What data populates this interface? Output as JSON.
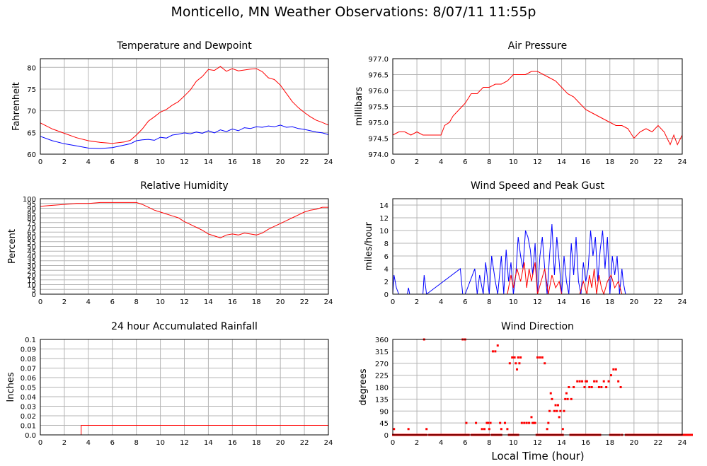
{
  "title": "Monticello, MN Weather Observations: 8/07/11 11:55p",
  "xlabel": "Local Time (hour)",
  "colors": {
    "red": "#ff0000",
    "blue": "#0000ff",
    "grid": "#b4b4b4",
    "frame": "#000000"
  },
  "chart_data": [
    {
      "id": "temp",
      "type": "line",
      "title": "Temperature and Dewpoint",
      "ylabel": "Fahrenheit",
      "xlim": [
        0,
        24
      ],
      "ylim": [
        60,
        82
      ],
      "yticks": [
        60,
        65,
        70,
        75,
        80
      ],
      "yticklabels": [
        "60",
        "65",
        "70",
        "75",
        "80"
      ],
      "xticks": [
        0,
        2,
        4,
        6,
        8,
        10,
        12,
        14,
        16,
        18,
        20,
        22,
        24
      ],
      "series": [
        {
          "color": "#ff0000",
          "x": [
            0,
            1,
            2,
            3,
            4,
            5,
            6,
            7,
            7.5,
            8,
            8.5,
            9,
            9.5,
            10,
            10.5,
            11,
            11.5,
            12,
            12.5,
            13,
            13.5,
            14,
            14.5,
            15,
            15.5,
            16,
            16.5,
            17,
            17.5,
            18,
            18.5,
            19,
            19.5,
            20,
            20.5,
            21,
            21.5,
            22,
            22.5,
            23,
            23.5,
            24
          ],
          "y": [
            67.2,
            65.8,
            64.8,
            63.8,
            63.1,
            62.7,
            62.5,
            62.8,
            63.2,
            64.4,
            65.8,
            67.6,
            68.6,
            69.7,
            70.3,
            71.3,
            72.1,
            73.4,
            74.8,
            76.8,
            77.9,
            79.5,
            79.3,
            80.2,
            79.1,
            79.7,
            79.2,
            79.4,
            79.6,
            79.7,
            79.0,
            77.6,
            77.2,
            75.9,
            74.0,
            72.1,
            70.7,
            69.6,
            68.6,
            67.8,
            67.3,
            66.7
          ]
        },
        {
          "color": "#0000ff",
          "x": [
            0,
            1,
            2,
            3,
            4,
            5,
            6,
            7,
            7.5,
            8,
            8.5,
            9,
            9.5,
            10,
            10.5,
            11,
            11.5,
            12,
            12.5,
            13,
            13.5,
            14,
            14.5,
            15,
            15.5,
            16,
            16.5,
            17,
            17.5,
            18,
            18.5,
            19,
            19.5,
            20,
            20.5,
            21,
            21.5,
            22,
            22.5,
            23,
            23.5,
            24
          ],
          "y": [
            64.1,
            63.1,
            62.4,
            61.9,
            61.4,
            61.3,
            61.5,
            62.1,
            62.4,
            63.1,
            63.3,
            63.4,
            63.2,
            63.9,
            63.7,
            64.4,
            64.6,
            64.9,
            64.7,
            65.1,
            64.8,
            65.4,
            64.9,
            65.6,
            65.2,
            65.8,
            65.4,
            66.1,
            65.9,
            66.3,
            66.2,
            66.5,
            66.3,
            66.7,
            66.2,
            66.3,
            65.9,
            65.7,
            65.4,
            65.1,
            64.9,
            64.5
          ]
        }
      ]
    },
    {
      "id": "pressure",
      "type": "line",
      "title": "Air Pressure",
      "ylabel": "millibars",
      "xlim": [
        0,
        24
      ],
      "ylim": [
        974.0,
        977.0
      ],
      "yticks": [
        974.0,
        974.5,
        975.0,
        975.5,
        976.0,
        976.5,
        977.0
      ],
      "yticklabels": [
        "974.0",
        "974.5",
        "975.0",
        "975.5",
        "976.0",
        "976.5",
        "977.0"
      ],
      "xticks": [
        0,
        2,
        4,
        6,
        8,
        10,
        12,
        14,
        16,
        18,
        20,
        22,
        24
      ],
      "series": [
        {
          "color": "#ff0000",
          "x": [
            0,
            0.5,
            1,
            1.5,
            2,
            2.5,
            3,
            3.5,
            4,
            4.3,
            4.7,
            5,
            5.5,
            6,
            6.5,
            7,
            7.5,
            8,
            8.5,
            9,
            9.5,
            10,
            10.5,
            11,
            11.5,
            12,
            12.5,
            13,
            13.5,
            14,
            14.5,
            15,
            15.5,
            16,
            16.5,
            17,
            17.5,
            18,
            18.5,
            19,
            19.5,
            20,
            20.5,
            21,
            21.5,
            22,
            22.5,
            23,
            23.3,
            23.6,
            24
          ],
          "y": [
            974.6,
            974.7,
            974.7,
            974.6,
            974.7,
            974.6,
            974.6,
            974.6,
            974.6,
            974.9,
            975.0,
            975.2,
            975.4,
            975.6,
            975.9,
            975.9,
            976.1,
            976.1,
            976.2,
            976.2,
            976.3,
            976.5,
            976.5,
            976.5,
            976.6,
            976.6,
            976.5,
            976.4,
            976.3,
            976.1,
            975.9,
            975.8,
            975.6,
            975.4,
            975.3,
            975.2,
            975.1,
            975.0,
            974.9,
            974.9,
            974.8,
            974.5,
            974.7,
            974.8,
            974.7,
            974.9,
            974.7,
            974.3,
            974.6,
            974.3,
            974.6
          ]
        }
      ]
    },
    {
      "id": "humidity",
      "type": "line",
      "title": "Relative Humidity",
      "ylabel": "Percent",
      "xlim": [
        0,
        24
      ],
      "ylim": [
        0,
        100
      ],
      "yticks": [
        0,
        5,
        10,
        15,
        20,
        25,
        30,
        35,
        40,
        45,
        50,
        55,
        60,
        65,
        70,
        75,
        80,
        85,
        90,
        95,
        100
      ],
      "yticklabels": [
        "0",
        "5",
        "10",
        "15",
        "20",
        "25",
        "30",
        "35",
        "40",
        "45",
        "50",
        "55",
        "60",
        "65",
        "70",
        "75",
        "80",
        "85",
        "90",
        "95",
        "100"
      ],
      "xticks": [
        0,
        2,
        4,
        6,
        8,
        10,
        12,
        14,
        16,
        18,
        20,
        22,
        24
      ],
      "series": [
        {
          "color": "#ff0000",
          "x": [
            0,
            1,
            2,
            3,
            4,
            5,
            6,
            7,
            8,
            8.5,
            9,
            9.5,
            10,
            10.5,
            11,
            11.5,
            12,
            12.5,
            13,
            13.5,
            14,
            14.5,
            15,
            15.5,
            16,
            16.5,
            17,
            17.5,
            18,
            18.5,
            19,
            19.5,
            20,
            20.5,
            21,
            21.5,
            22,
            22.5,
            23,
            23.5,
            24
          ],
          "y": [
            92,
            93,
            94,
            95,
            95,
            96,
            96,
            96,
            96,
            94,
            91,
            88,
            86,
            84,
            82,
            80,
            76,
            73,
            70,
            67,
            63,
            61,
            59,
            62,
            63,
            62,
            64,
            63,
            62,
            64,
            68,
            71,
            74,
            77,
            80,
            83,
            86,
            88,
            89,
            91,
            91
          ]
        }
      ]
    },
    {
      "id": "wind",
      "type": "line",
      "title": "Wind Speed and Peak Gust",
      "ylabel": "miles/hour",
      "xlim": [
        0,
        24
      ],
      "ylim": [
        0,
        15
      ],
      "yticks": [
        0,
        2,
        4,
        6,
        8,
        10,
        12,
        14
      ],
      "yticklabels": [
        "0",
        "2",
        "4",
        "6",
        "8",
        "10",
        "12",
        "14"
      ],
      "xticks": [
        0,
        2,
        4,
        6,
        8,
        10,
        12,
        14,
        16,
        18,
        20,
        22,
        24
      ],
      "series": [
        {
          "color": "#0000ff",
          "x": [
            0,
            0.1,
            0.3,
            0.5,
            1.2,
            1.3,
            1.4,
            2.5,
            2.6,
            2.8,
            5.6,
            5.8,
            6.0,
            6.8,
            7.0,
            7.2,
            7.5,
            7.7,
            8.0,
            8.2,
            8.5,
            8.7,
            9.0,
            9.2,
            9.4,
            9.6,
            9.8,
            10.0,
            10.2,
            10.4,
            10.6,
            10.8,
            11.0,
            11.2,
            11.4,
            11.6,
            11.8,
            12.0,
            12.2,
            12.4,
            12.6,
            12.8,
            13.0,
            13.2,
            13.4,
            13.6,
            13.8,
            14.0,
            14.2,
            14.4,
            14.6,
            14.8,
            15.0,
            15.2,
            15.4,
            15.6,
            15.8,
            16.0,
            16.2,
            16.4,
            16.6,
            16.8,
            17.0,
            17.2,
            17.4,
            17.6,
            17.8,
            18.0,
            18.2,
            18.4,
            18.6,
            18.8,
            19.0,
            19.1,
            19.3,
            24
          ],
          "y": [
            0,
            3,
            1,
            0,
            0,
            1,
            0,
            0,
            3,
            0,
            4,
            0,
            0,
            4,
            0,
            3,
            0,
            5,
            0,
            6,
            2,
            0,
            6,
            0,
            7,
            2,
            5,
            0,
            3,
            9,
            6,
            4,
            10,
            9,
            7,
            3,
            8,
            0,
            6,
            9,
            4,
            0,
            6,
            11,
            3,
            9,
            5,
            0,
            6,
            2,
            0,
            8,
            3,
            9,
            2,
            0,
            5,
            2,
            4,
            10,
            6,
            9,
            2,
            7,
            10,
            4,
            9,
            0,
            6,
            3,
            6,
            0,
            4,
            2,
            0,
            0
          ]
        },
        {
          "color": "#ff0000",
          "x": [
            0,
            9.5,
            9.8,
            10.0,
            10.3,
            10.6,
            10.9,
            11.1,
            11.3,
            11.5,
            11.8,
            12.0,
            12.3,
            12.6,
            12.9,
            13.2,
            13.5,
            13.8,
            14.0,
            15.5,
            15.8,
            16.1,
            16.3,
            16.5,
            16.7,
            16.9,
            17.1,
            17.3,
            17.5,
            17.8,
            18.1,
            18.4,
            18.7,
            19.0,
            24
          ],
          "y": [
            0,
            0,
            3,
            1,
            4,
            2,
            5,
            1,
            4,
            2,
            5,
            0,
            2,
            4,
            0,
            3,
            1,
            2,
            0,
            0,
            2,
            0,
            3,
            1,
            4,
            0,
            3,
            1,
            0,
            2,
            3,
            1,
            2,
            0,
            0
          ]
        }
      ]
    },
    {
      "id": "rain",
      "type": "line",
      "title": "24 hour Accumulated Rainfall",
      "ylabel": "Inches",
      "xlim": [
        0,
        24
      ],
      "ylim": [
        0,
        0.1
      ],
      "yticks": [
        0,
        0.01,
        0.02,
        0.03,
        0.04,
        0.05,
        0.06,
        0.07,
        0.08,
        0.09,
        0.1
      ],
      "yticklabels": [
        "0.0",
        "0.01",
        "0.02",
        "0.03",
        "0.04",
        "0.05",
        "0.06",
        "0.07",
        "0.08",
        "0.09",
        "0.1"
      ],
      "xticks": [
        0,
        2,
        4,
        6,
        8,
        10,
        12,
        14,
        16,
        18,
        20,
        22,
        24
      ],
      "series": [
        {
          "color": "#ff0000",
          "x": [
            0,
            3.4,
            3.4,
            24
          ],
          "y": [
            0,
            0,
            0.01,
            0.01
          ]
        }
      ]
    },
    {
      "id": "direction",
      "type": "scatter",
      "title": "Wind Direction",
      "ylabel": "degrees",
      "xlabel": "Local Time (hour)",
      "xlim": [
        0,
        24
      ],
      "ylim": [
        0,
        360
      ],
      "yticks": [
        0,
        45,
        90,
        135,
        180,
        225,
        270,
        315,
        360
      ],
      "yticklabels": [
        "0",
        "45",
        "90",
        "135",
        "180",
        "225",
        "270",
        "315",
        "360"
      ],
      "xticks": [
        0,
        2,
        4,
        6,
        8,
        10,
        12,
        14,
        16,
        18,
        20,
        22,
        24
      ],
      "series": [
        {
          "color": "#ff0000",
          "x": [
            0.1,
            0.2,
            1.3,
            2.6,
            2.8,
            5.8,
            6.0,
            6.1,
            6.9,
            7.4,
            7.6,
            7.8,
            7.9,
            8.0,
            8.1,
            8.3,
            8.5,
            8.7,
            8.9,
            9.0,
            9.3,
            9.5,
            9.7,
            9.9,
            10.0,
            10.1,
            10.2,
            10.3,
            10.4,
            10.5,
            10.6,
            10.7,
            10.9,
            11.1,
            11.3,
            11.5,
            11.6,
            11.7,
            11.8,
            12.0,
            12.2,
            12.4,
            12.6,
            12.8,
            12.9,
            13.0,
            13.1,
            13.2,
            13.4,
            13.5,
            13.6,
            13.7,
            13.8,
            13.9,
            14.0,
            14.1,
            14.2,
            14.3,
            14.4,
            14.5,
            14.6,
            14.8,
            15.0,
            15.3,
            15.5,
            15.7,
            15.9,
            16.0,
            16.1,
            16.3,
            16.5,
            16.7,
            16.9,
            17.1,
            17.3,
            17.5,
            17.7,
            17.9,
            18.1,
            18.3,
            18.5,
            18.7,
            18.9,
            19.0
          ],
          "y": [
            22,
            0,
            22,
            360,
            22,
            360,
            360,
            45,
            45,
            22,
            22,
            45,
            45,
            22,
            45,
            315,
            315,
            337,
            45,
            22,
            45,
            22,
            270,
            292,
            292,
            292,
            270,
            247,
            292,
            270,
            292,
            45,
            45,
            45,
            45,
            67,
            45,
            45,
            45,
            292,
            292,
            292,
            270,
            22,
            45,
            90,
            157,
            135,
            90,
            112,
            90,
            112,
            67,
            90,
            0,
            22,
            90,
            135,
            157,
            135,
            180,
            135,
            180,
            202,
            202,
            202,
            180,
            202,
            202,
            180,
            180,
            202,
            202,
            180,
            180,
            202,
            180,
            202,
            225,
            247,
            247,
            202,
            180,
            0
          ]
        },
        {
          "color": "#ff0000",
          "kind": "baseline",
          "x": [
            0.0,
            0.3,
            0.6,
            1.0,
            1.5,
            2.0,
            3.0,
            3.5,
            4.0,
            4.5,
            5.0,
            5.5,
            6.5,
            7.0,
            7.2,
            8.2,
            9.6,
            11.9,
            12.5,
            13.3,
            14.7,
            15.1,
            15.6,
            16.4,
            18.0,
            19.3,
            19.6,
            20.0,
            20.5,
            21.0,
            21.5,
            22.0,
            22.5,
            23.0,
            23.5,
            24.0
          ],
          "y": [
            0,
            0,
            0,
            0,
            0,
            0,
            0,
            0,
            0,
            0,
            0,
            0,
            0,
            0,
            0,
            0,
            0,
            0,
            0,
            0,
            0,
            0,
            0,
            0,
            0,
            0,
            0,
            0,
            0,
            0,
            0,
            0,
            0,
            0,
            0,
            0
          ]
        }
      ]
    }
  ]
}
